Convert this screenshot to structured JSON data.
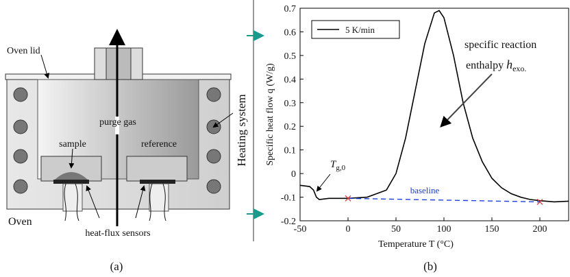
{
  "diagram": {
    "labels": {
      "oven_lid": "Oven lid",
      "purge_gas": "purge gas",
      "sample": "sample",
      "reference": "reference",
      "heating_system": "Heating system",
      "oven": "Oven",
      "sensors": "heat-flux sensors"
    }
  },
  "captions": [
    "(a)",
    "(b)"
  ],
  "chart_data": {
    "type": "line",
    "xlabel": "Temperature T (°C)",
    "ylabel": "Specific heat flow q (W/g)",
    "xlim": [
      -50,
      230
    ],
    "ylim": [
      -0.2,
      0.7
    ],
    "xticks": [
      -50,
      0,
      50,
      100,
      150,
      200
    ],
    "yticks": [
      -0.2,
      -0.1,
      0,
      0.1,
      0.2,
      0.3,
      0.4,
      0.5,
      0.6,
      0.7
    ],
    "legend": "upper left",
    "series": [
      {
        "name": "5 K/min",
        "color": "#000000",
        "x": [
          -50,
          -40,
          -36,
          -33,
          -30,
          -20,
          0,
          20,
          40,
          50,
          60,
          70,
          80,
          90,
          95,
          100,
          110,
          120,
          130,
          140,
          150,
          160,
          170,
          180,
          190,
          200,
          215,
          230
        ],
        "values": [
          -0.05,
          -0.055,
          -0.07,
          -0.1,
          -0.11,
          -0.105,
          -0.105,
          -0.1,
          -0.07,
          0.0,
          0.15,
          0.35,
          0.55,
          0.68,
          0.69,
          0.66,
          0.5,
          0.3,
          0.15,
          0.05,
          -0.02,
          -0.06,
          -0.085,
          -0.1,
          -0.11,
          -0.115,
          -0.12,
          -0.117
        ]
      }
    ],
    "baseline": {
      "label": "baseline",
      "color": "#1f3fd6",
      "x": [
        0,
        200
      ],
      "values": [
        -0.105,
        -0.12
      ]
    },
    "annotations": {
      "reaction": {
        "line1": "specific reaction",
        "line2": "enthalpy",
        "symbol": "h",
        "subscript": "exo."
      },
      "tg": {
        "symbol": "T",
        "subscript": "g,0"
      }
    }
  }
}
